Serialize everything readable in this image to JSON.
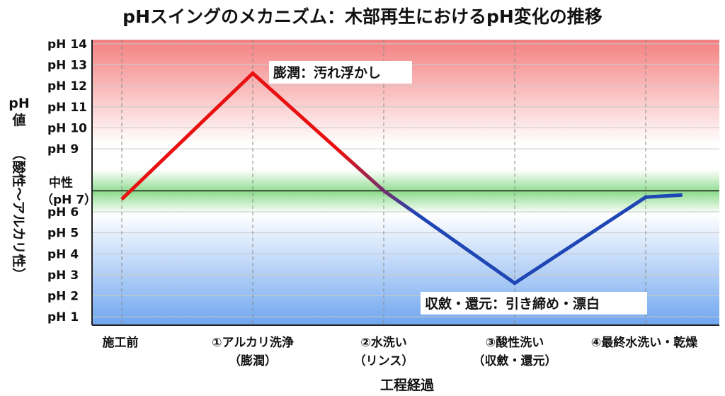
{
  "chart_data": {
    "type": "line",
    "title": "pHスイングのメカニズム：木部再生におけるpH変化の推移",
    "xlabel": "工程経過",
    "ylabel": "pH値（酸性〜アルカリ性）",
    "ylabel_parts": [
      "pH",
      "値",
      "（酸性〜アルカリ性）"
    ],
    "ylim": [
      0.6,
      14.2
    ],
    "grid": true,
    "yticks": [
      {
        "value": 14,
        "label": "pH 14"
      },
      {
        "value": 13,
        "label": "pH 13"
      },
      {
        "value": 12,
        "label": "pH 12"
      },
      {
        "value": 11,
        "label": "pH 11"
      },
      {
        "value": 10,
        "label": "pH 10"
      },
      {
        "value": 9,
        "label": "pH 9"
      },
      {
        "value": 6,
        "label": "pH 6"
      },
      {
        "value": 5,
        "label": "pH 5"
      },
      {
        "value": 4,
        "label": "pH 4"
      },
      {
        "value": 3,
        "label": "pH 3"
      },
      {
        "value": 2,
        "label": "pH 2"
      },
      {
        "value": 1,
        "label": "pH 1"
      }
    ],
    "neutral": {
      "value": 7,
      "label_top": "中性",
      "label_bottom": "（pH 7）"
    },
    "categories": [
      {
        "line1": "施工前",
        "line2": ""
      },
      {
        "line1": "①アルカリ洗浄",
        "line2": "（膨潤）"
      },
      {
        "line1": "②水洗い",
        "line2": "（リンス）"
      },
      {
        "line1": "③酸性洗い",
        "line2": "（収斂・還元）"
      },
      {
        "line1": "④最終水洗い・乾燥",
        "line2": ""
      }
    ],
    "series": [
      {
        "points": [
          {
            "x": 0,
            "y": 6.6
          },
          {
            "x": 1,
            "y": 12.6
          },
          {
            "x": 2,
            "y": 7.0
          },
          {
            "x": 3,
            "y": 2.6
          },
          {
            "x": 4,
            "y": 6.7
          },
          {
            "x": 4.28,
            "y": 6.8
          }
        ]
      }
    ],
    "annotations": [
      {
        "text": "膨潤：汚れ浮かし"
      },
      {
        "text": "収斂・還元：引き締め・漂白"
      }
    ],
    "colors": {
      "alkaline": "#e81010",
      "acidic": "#1e46b4",
      "neutral_band": "#8fdc8f",
      "alkaline_band": "#f48080",
      "acidic_band": "#6fa6ef"
    }
  }
}
